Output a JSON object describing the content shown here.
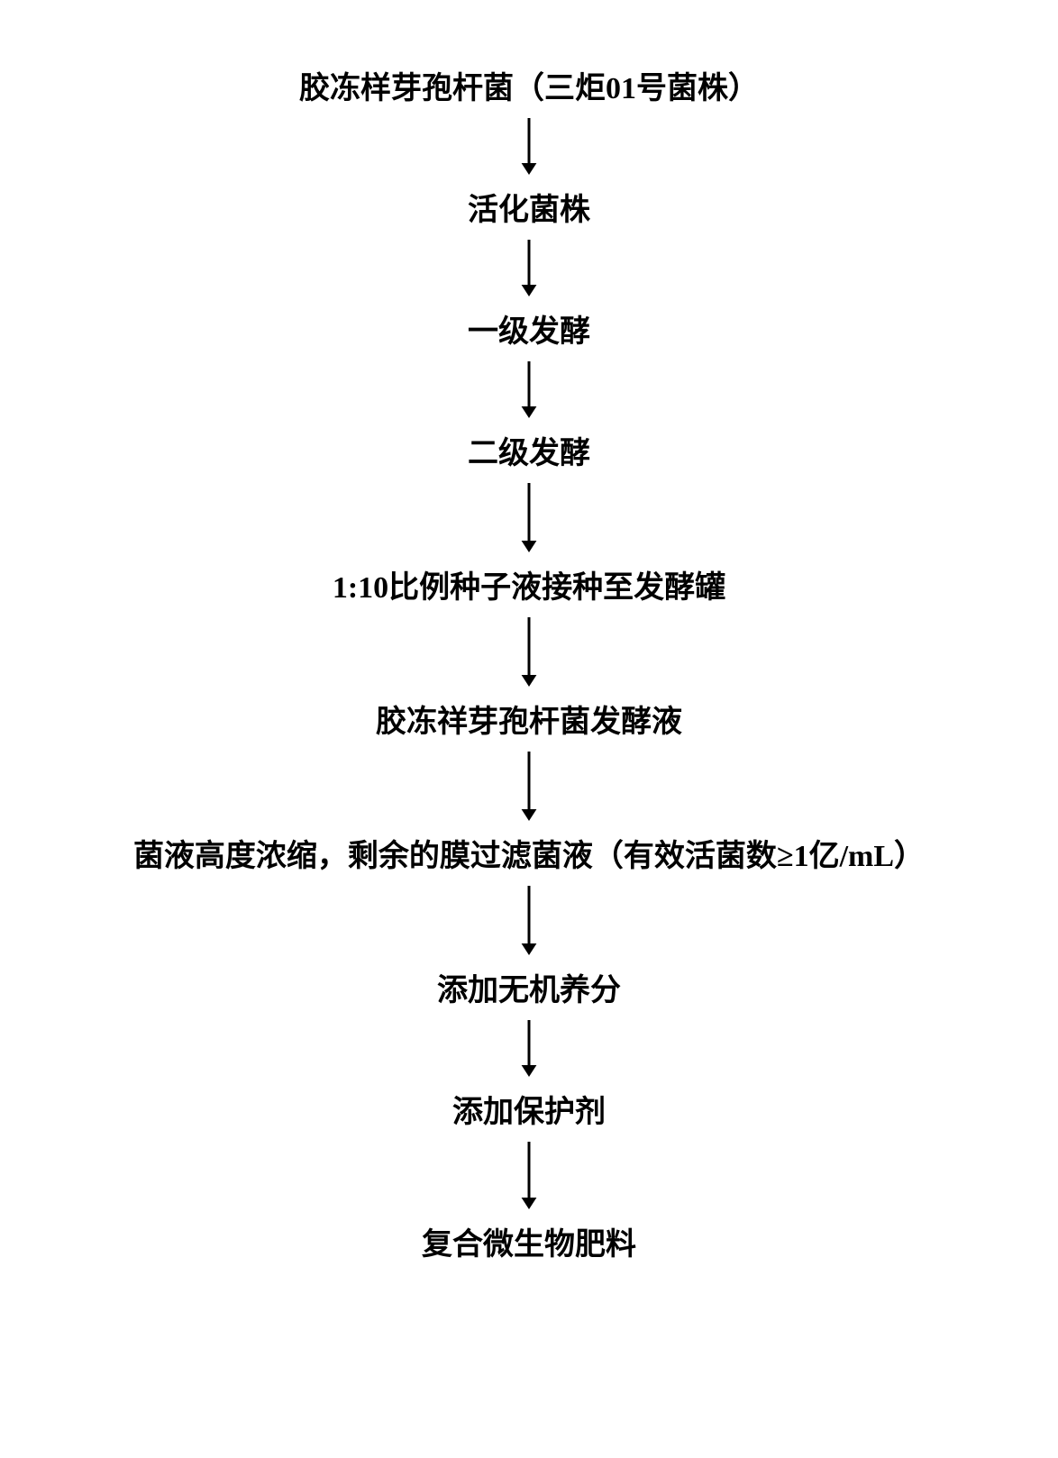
{
  "flowchart": {
    "type": "flowchart",
    "direction": "vertical",
    "background_color": "#ffffff",
    "text_color": "#000000",
    "font_family": "SimSun",
    "font_weight": "bold",
    "node_fontsize": 34,
    "arrow_color": "#000000",
    "arrow_stroke_width": 3,
    "arrow_head_size": 14,
    "nodes": [
      {
        "id": "n1",
        "label": "胶冻样芽孢杆菌（三炬01号菌株）",
        "arrow_length": 66
      },
      {
        "id": "n2",
        "label": "活化菌株",
        "arrow_length": 66
      },
      {
        "id": "n3",
        "label": "一级发酵",
        "arrow_length": 66
      },
      {
        "id": "n4",
        "label": "二级发酵",
        "arrow_length": 80
      },
      {
        "id": "n5",
        "label": "1:10比例种子液接种至发酵罐",
        "arrow_length": 80
      },
      {
        "id": "n6",
        "label": "胶冻祥芽孢杆菌发酵液",
        "arrow_length": 80
      },
      {
        "id": "n7",
        "label": "菌液高度浓缩，剩余的膜过滤菌液（有效活菌数≥1亿/mL）",
        "arrow_length": 80
      },
      {
        "id": "n8",
        "label": "添加无机养分",
        "arrow_length": 66
      },
      {
        "id": "n9",
        "label": "添加保护剂",
        "arrow_length": 78
      },
      {
        "id": "n10",
        "label": "复合微生物肥料",
        "arrow_length": 0
      }
    ]
  }
}
